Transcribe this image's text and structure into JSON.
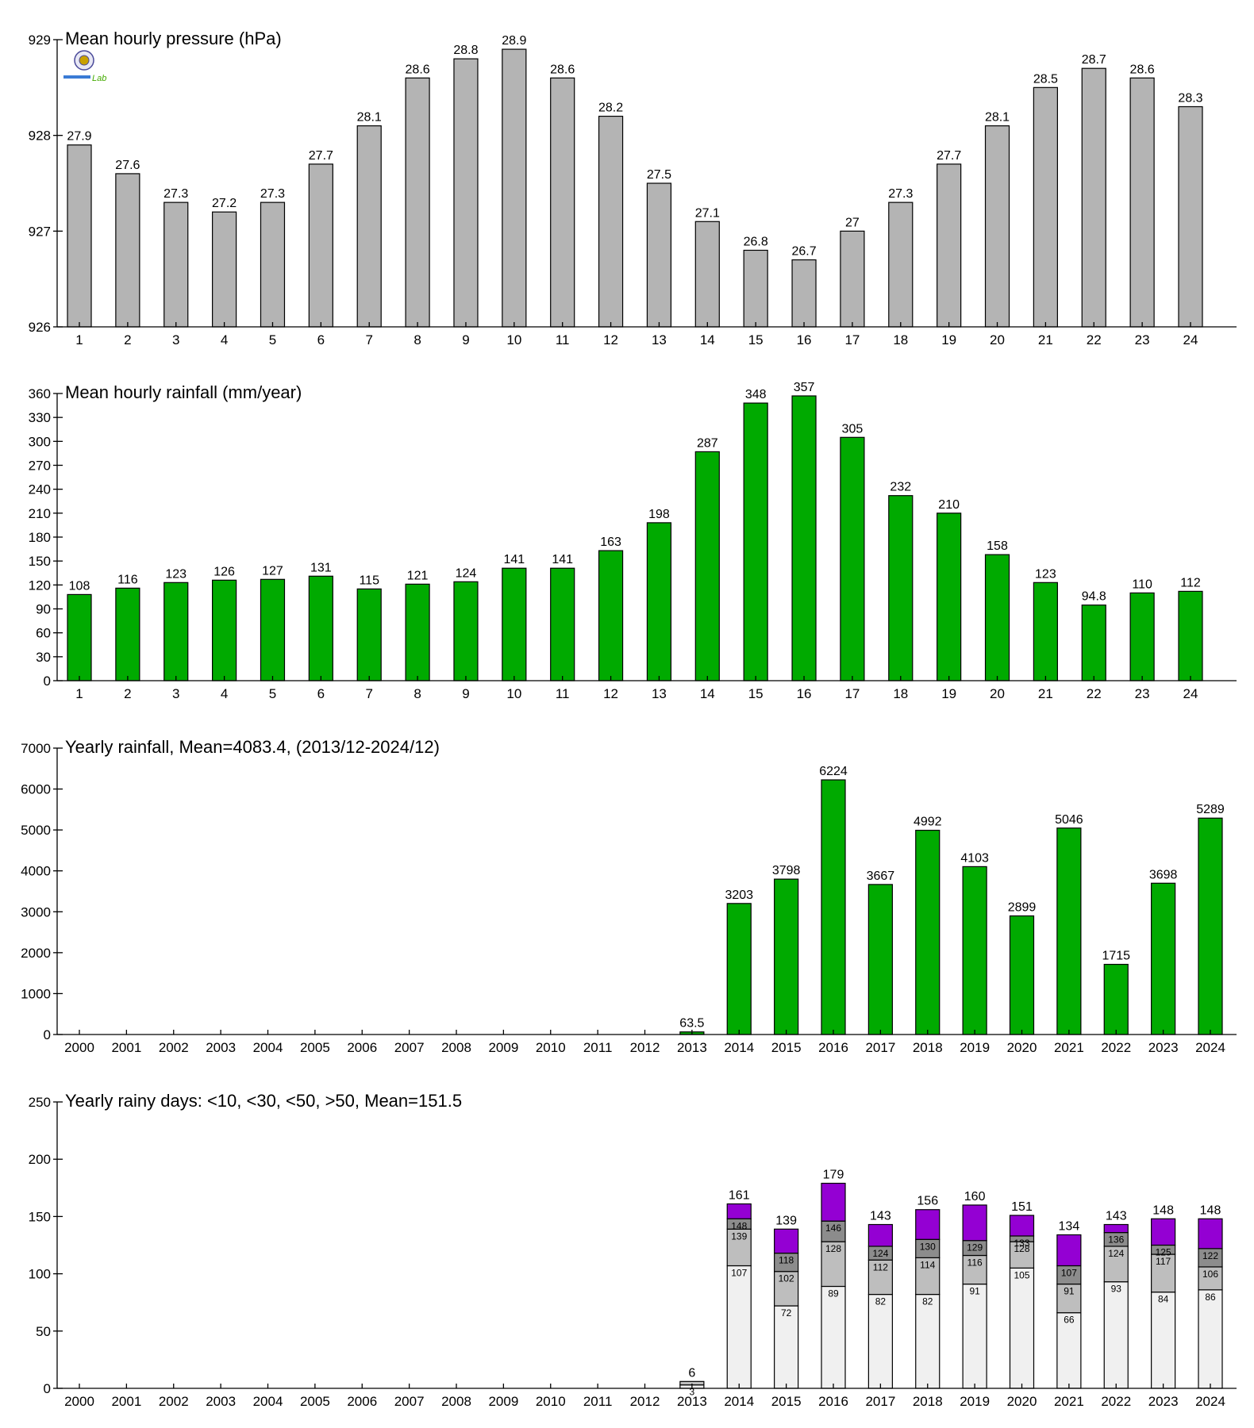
{
  "colors": {
    "pressure_bar": "#b4b4b4",
    "rain_bar": "#00aa00",
    "days_lt10": "#f0f0f0",
    "days_lt30": "#bebebe",
    "days_lt50": "#8c8c8c",
    "days_gt50": "#9400d3"
  },
  "logo": {
    "text": "Lab"
  },
  "chart_data": [
    {
      "type": "bar",
      "title": "Mean hourly pressure (hPa)",
      "categories": [
        "1",
        "2",
        "3",
        "4",
        "5",
        "6",
        "7",
        "8",
        "9",
        "10",
        "11",
        "12",
        "13",
        "14",
        "15",
        "16",
        "17",
        "18",
        "19",
        "20",
        "21",
        "22",
        "23",
        "24"
      ],
      "values": [
        927.9,
        927.6,
        927.3,
        927.2,
        927.3,
        927.7,
        928.1,
        928.6,
        928.8,
        928.9,
        928.6,
        928.2,
        927.5,
        927.1,
        926.8,
        926.7,
        927,
        927.3,
        927.7,
        928.1,
        928.5,
        928.7,
        928.6,
        928.3
      ],
      "value_labels": [
        "27.9",
        "27.6",
        "27.3",
        "27.2",
        "27.3",
        "27.7",
        "28.1",
        "28.6",
        "28.8",
        "28.9",
        "28.6",
        "28.2",
        "27.5",
        "27.1",
        "26.8",
        "26.7",
        "27",
        "27.3",
        "27.7",
        "28.1",
        "28.5",
        "28.7",
        "28.6",
        "28.3"
      ],
      "ylim": [
        926,
        929
      ],
      "yticks": [
        926,
        927,
        928,
        929
      ],
      "grid": false
    },
    {
      "type": "bar",
      "title": "Mean hourly rainfall (mm/year)",
      "categories": [
        "1",
        "2",
        "3",
        "4",
        "5",
        "6",
        "7",
        "8",
        "9",
        "10",
        "11",
        "12",
        "13",
        "14",
        "15",
        "16",
        "17",
        "18",
        "19",
        "20",
        "21",
        "22",
        "23",
        "24"
      ],
      "values": [
        108,
        116,
        123,
        126,
        127,
        131,
        115,
        121,
        124,
        141,
        141,
        163,
        198,
        287,
        348,
        357,
        305,
        232,
        210,
        158,
        123,
        94.8,
        110,
        112
      ],
      "value_labels": [
        "108",
        "116",
        "123",
        "126",
        "127",
        "131",
        "115",
        "121",
        "124",
        "141",
        "141",
        "163",
        "198",
        "287",
        "348",
        "357",
        "305",
        "232",
        "210",
        "158",
        "123",
        "94.8",
        "110",
        "112"
      ],
      "ylim": [
        0,
        360
      ],
      "yticks": [
        0,
        30,
        60,
        90,
        120,
        150,
        180,
        210,
        240,
        270,
        300,
        330,
        360
      ],
      "grid": false
    },
    {
      "type": "bar",
      "title": "Yearly rainfall, Mean=4083.4, (2013/12-2024/12)",
      "categories": [
        "2000",
        "2001",
        "2002",
        "2003",
        "2004",
        "2005",
        "2006",
        "2007",
        "2008",
        "2009",
        "2010",
        "2011",
        "2012",
        "2013",
        "2014",
        "2015",
        "2016",
        "2017",
        "2018",
        "2019",
        "2020",
        "2021",
        "2022",
        "2023",
        "2024"
      ],
      "values": [
        null,
        null,
        null,
        null,
        null,
        null,
        null,
        null,
        null,
        null,
        null,
        null,
        null,
        63.5,
        3203,
        3798,
        6224,
        3667,
        4992,
        4103,
        2899,
        5046,
        1715,
        3698,
        5289
      ],
      "value_labels": [
        "",
        "",
        "",
        "",
        "",
        "",
        "",
        "",
        "",
        "",
        "",
        "",
        "",
        "63.5",
        "3203",
        "3798",
        "6224",
        "3667",
        "4992",
        "4103",
        "2899",
        "5046",
        "1715",
        "3698",
        "5289"
      ],
      "ylim": [
        0,
        7000
      ],
      "yticks": [
        0,
        1000,
        2000,
        3000,
        4000,
        5000,
        6000,
        7000
      ],
      "grid": false
    },
    {
      "type": "bar",
      "stacked": true,
      "title": "Yearly rainy days: <10, <30, <50, >50, Mean=151.5",
      "categories": [
        "2000",
        "2001",
        "2002",
        "2003",
        "2004",
        "2005",
        "2006",
        "2007",
        "2008",
        "2009",
        "2010",
        "2011",
        "2012",
        "2013",
        "2014",
        "2015",
        "2016",
        "2017",
        "2018",
        "2019",
        "2020",
        "2021",
        "2022",
        "2023",
        "2024"
      ],
      "cumulative": [
        null,
        null,
        null,
        null,
        null,
        null,
        null,
        null,
        null,
        null,
        null,
        null,
        null,
        [
          3,
          6,
          6,
          6
        ],
        [
          107,
          139,
          148,
          161
        ],
        [
          72,
          102,
          118,
          139
        ],
        [
          89,
          128,
          146,
          179
        ],
        [
          82,
          112,
          124,
          143
        ],
        [
          82,
          114,
          130,
          156
        ],
        [
          91,
          116,
          129,
          160
        ],
        [
          105,
          128,
          133,
          151
        ],
        [
          66,
          91,
          107,
          134
        ],
        [
          93,
          124,
          136,
          143
        ],
        [
          84,
          117,
          125,
          148
        ],
        [
          86,
          106,
          122,
          148
        ]
      ],
      "total_labels": [
        "",
        "",
        "",
        "",
        "",
        "",
        "",
        "",
        "",
        "",
        "",
        "",
        "",
        "6",
        "161",
        "139",
        "179",
        "143",
        "156",
        "160",
        "151",
        "134",
        "143",
        "148",
        "148"
      ],
      "segment_labels": [
        null,
        null,
        null,
        null,
        null,
        null,
        null,
        null,
        null,
        null,
        null,
        null,
        null,
        [
          "3",
          "",
          "",
          ""
        ],
        [
          "107",
          "139",
          "148",
          ""
        ],
        [
          "72",
          "102",
          "118",
          ""
        ],
        [
          "89",
          "128",
          "146",
          ""
        ],
        [
          "82",
          "112",
          "124",
          ""
        ],
        [
          "82",
          "114",
          "130",
          ""
        ],
        [
          "91",
          "116",
          "129",
          ""
        ],
        [
          "105",
          "128",
          "133",
          ""
        ],
        [
          "66",
          "91",
          "107",
          ""
        ],
        [
          "93",
          "124",
          "136",
          ""
        ],
        [
          "84",
          "117",
          "125",
          ""
        ],
        [
          "86",
          "106",
          "122",
          ""
        ]
      ],
      "ylim": [
        0,
        250
      ],
      "yticks": [
        0,
        50,
        100,
        150,
        200,
        250
      ],
      "grid": false
    }
  ]
}
